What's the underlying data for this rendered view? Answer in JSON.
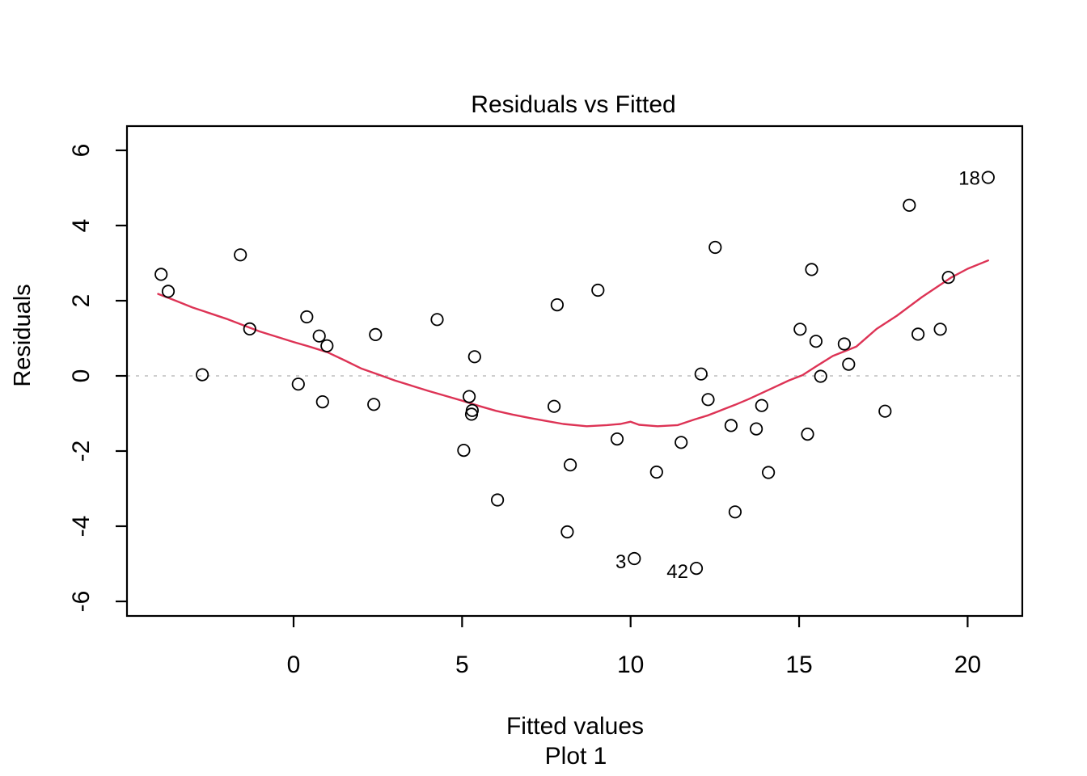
{
  "figure": {
    "title": "Residuals vs Fitted",
    "xlabel": "Fitted values",
    "sublabel": "Plot 1",
    "ylabel": "Residuals"
  },
  "chart_data": {
    "type": "scatter",
    "title": "Residuals vs Fitted",
    "xlabel": "Fitted values",
    "sublabel": "Plot 1",
    "ylabel": "Residuals",
    "xlim": [
      -4.9,
      21.6
    ],
    "ylim": [
      -6.4,
      6.6
    ],
    "x_ticks": [
      0,
      5,
      10,
      15,
      20
    ],
    "y_ticks": [
      -6,
      -4,
      -2,
      0,
      2,
      4,
      6
    ],
    "grid": false,
    "legend": "none",
    "reference_line_y": 0,
    "points": [
      [
        -3.93,
        2.7
      ],
      [
        -3.72,
        2.25
      ],
      [
        -2.71,
        0.03
      ],
      [
        -1.58,
        3.22
      ],
      [
        -1.3,
        1.25
      ],
      [
        0.14,
        -0.22
      ],
      [
        0.39,
        1.57
      ],
      [
        0.76,
        1.06
      ],
      [
        0.86,
        -0.69
      ],
      [
        0.99,
        0.8
      ],
      [
        2.38,
        -0.76
      ],
      [
        2.43,
        1.1
      ],
      [
        4.26,
        1.5
      ],
      [
        5.05,
        -1.98
      ],
      [
        5.21,
        -0.55
      ],
      [
        5.28,
        -1.02
      ],
      [
        5.3,
        -0.92
      ],
      [
        5.37,
        0.51
      ],
      [
        6.05,
        -3.3
      ],
      [
        7.73,
        -0.81
      ],
      [
        7.82,
        1.89
      ],
      [
        8.12,
        -4.15
      ],
      [
        8.21,
        -2.37
      ],
      [
        9.03,
        2.28
      ],
      [
        9.6,
        -1.68
      ],
      [
        10.11,
        -4.86
      ],
      [
        10.77,
        -2.56
      ],
      [
        11.5,
        -1.77
      ],
      [
        11.95,
        -5.12
      ],
      [
        12.09,
        0.05
      ],
      [
        12.3,
        -0.63
      ],
      [
        12.51,
        3.42
      ],
      [
        12.98,
        -1.32
      ],
      [
        13.1,
        -3.62
      ],
      [
        13.73,
        -1.41
      ],
      [
        13.89,
        -0.79
      ],
      [
        14.09,
        -2.57
      ],
      [
        15.03,
        1.24
      ],
      [
        15.25,
        -1.55
      ],
      [
        15.37,
        2.83
      ],
      [
        15.5,
        0.92
      ],
      [
        15.64,
        -0.01
      ],
      [
        16.34,
        0.85
      ],
      [
        16.47,
        0.31
      ],
      [
        17.55,
        -0.94
      ],
      [
        18.27,
        4.54
      ],
      [
        18.53,
        1.11
      ],
      [
        19.19,
        1.24
      ],
      [
        19.43,
        2.62
      ],
      [
        20.61,
        5.28
      ]
    ],
    "labeled_points": [
      {
        "label": "18",
        "x": 20.61,
        "y": 5.28
      },
      {
        "label": "3",
        "x": 10.11,
        "y": -4.86
      },
      {
        "label": "42",
        "x": 11.95,
        "y": -5.12
      }
    ],
    "smooth_line": {
      "name": "loess-smooth",
      "points": [
        [
          -4.02,
          2.18
        ],
        [
          -3.5,
          2.0
        ],
        [
          -3.0,
          1.82
        ],
        [
          -2.5,
          1.67
        ],
        [
          -2.0,
          1.52
        ],
        [
          -1.5,
          1.35
        ],
        [
          -1.0,
          1.18
        ],
        [
          -0.5,
          1.04
        ],
        [
          0.0,
          0.9
        ],
        [
          0.5,
          0.77
        ],
        [
          1.0,
          0.63
        ],
        [
          1.5,
          0.42
        ],
        [
          2.0,
          0.2
        ],
        [
          2.5,
          0.04
        ],
        [
          3.0,
          -0.12
        ],
        [
          3.5,
          -0.26
        ],
        [
          4.0,
          -0.4
        ],
        [
          4.5,
          -0.53
        ],
        [
          5.0,
          -0.66
        ],
        [
          5.5,
          -0.8
        ],
        [
          6.0,
          -0.93
        ],
        [
          6.5,
          -1.03
        ],
        [
          7.0,
          -1.12
        ],
        [
          7.5,
          -1.2
        ],
        [
          8.0,
          -1.28
        ],
        [
          8.7,
          -1.34
        ],
        [
          9.3,
          -1.31
        ],
        [
          9.7,
          -1.28
        ],
        [
          10.0,
          -1.22
        ],
        [
          10.25,
          -1.3
        ],
        [
          10.8,
          -1.34
        ],
        [
          11.4,
          -1.31
        ],
        [
          11.9,
          -1.16
        ],
        [
          12.3,
          -1.05
        ],
        [
          12.7,
          -0.91
        ],
        [
          13.1,
          -0.77
        ],
        [
          13.5,
          -0.62
        ],
        [
          14.2,
          -0.33
        ],
        [
          14.7,
          -0.12
        ],
        [
          15.1,
          0.02
        ],
        [
          15.5,
          0.25
        ],
        [
          16.0,
          0.53
        ],
        [
          16.7,
          0.78
        ],
        [
          17.3,
          1.25
        ],
        [
          17.9,
          1.6
        ],
        [
          18.65,
          2.1
        ],
        [
          19.5,
          2.61
        ],
        [
          20.0,
          2.85
        ],
        [
          20.61,
          3.07
        ]
      ]
    },
    "colors": {
      "smooth_line": "#dd3355",
      "reference_line": "#bdbdbd",
      "point_stroke": "#000000",
      "axis": "#000000",
      "background": "#ffffff"
    }
  }
}
